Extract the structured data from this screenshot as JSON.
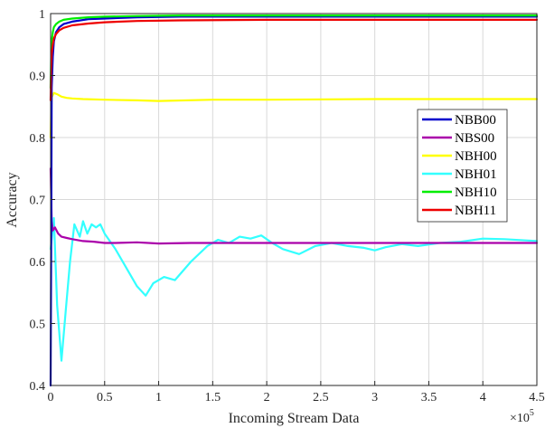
{
  "chart_data": {
    "type": "line",
    "title": "",
    "xlabel": "Incoming Stream Data",
    "ylabel": "Accuracy",
    "x_multiplier": "×10",
    "x_multiplier_exp": "5",
    "xlim": [
      0,
      4.5
    ],
    "ylim": [
      0.4,
      1.0
    ],
    "xticks": [
      "0",
      "0.5",
      "1",
      "1.5",
      "2",
      "2.5",
      "3",
      "3.5",
      "4",
      "4.5"
    ],
    "yticks": [
      "0.4",
      "0.5",
      "0.6",
      "0.7",
      "0.8",
      "0.9",
      "1"
    ],
    "grid": true,
    "legend_position": "right",
    "series": [
      {
        "name": "NBB00",
        "color": "#0000cc",
        "x": [
          0,
          0.005,
          0.01,
          0.02,
          0.03,
          0.05,
          0.08,
          0.12,
          0.2,
          0.35,
          0.5,
          0.8,
          1.2,
          2.0,
          3.0,
          4.0,
          4.5
        ],
        "y": [
          0.4,
          0.62,
          0.88,
          0.93,
          0.955,
          0.97,
          0.978,
          0.983,
          0.987,
          0.991,
          0.992,
          0.994,
          0.995,
          0.995,
          0.995,
          0.995,
          0.995
        ]
      },
      {
        "name": "NBS00",
        "color": "#aa00aa",
        "x": [
          0,
          0.01,
          0.02,
          0.04,
          0.07,
          0.1,
          0.15,
          0.2,
          0.3,
          0.4,
          0.5,
          0.6,
          0.8,
          1.0,
          1.3,
          2.0,
          3.0,
          4.0,
          4.5
        ],
        "y": [
          0.75,
          0.665,
          0.65,
          0.655,
          0.645,
          0.64,
          0.638,
          0.636,
          0.633,
          0.632,
          0.63,
          0.63,
          0.631,
          0.629,
          0.63,
          0.63,
          0.63,
          0.63,
          0.63
        ]
      },
      {
        "name": "NBH00",
        "color": "#ffff00",
        "x": [
          0,
          0.005,
          0.01,
          0.03,
          0.06,
          0.1,
          0.15,
          0.2,
          0.3,
          0.5,
          0.8,
          1.0,
          1.5,
          2.0,
          3.0,
          4.0,
          4.5
        ],
        "y": [
          0.8,
          0.84,
          0.865,
          0.872,
          0.87,
          0.866,
          0.864,
          0.863,
          0.862,
          0.861,
          0.86,
          0.859,
          0.861,
          0.861,
          0.862,
          0.862,
          0.862
        ]
      },
      {
        "name": "NBH01",
        "color": "#33ffff",
        "x": [
          0,
          0.03,
          0.06,
          0.1,
          0.14,
          0.18,
          0.22,
          0.27,
          0.3,
          0.34,
          0.38,
          0.42,
          0.46,
          0.5,
          0.6,
          0.7,
          0.8,
          0.88,
          0.95,
          1.05,
          1.15,
          1.3,
          1.45,
          1.55,
          1.65,
          1.75,
          1.85,
          1.95,
          2.05,
          2.15,
          2.3,
          2.45,
          2.6,
          2.75,
          2.9,
          3.0,
          3.1,
          3.25,
          3.4,
          3.6,
          3.8,
          4.0,
          4.2,
          4.4,
          4.5
        ],
        "y": [
          0.62,
          0.67,
          0.53,
          0.44,
          0.52,
          0.6,
          0.66,
          0.64,
          0.665,
          0.645,
          0.66,
          0.655,
          0.66,
          0.645,
          0.62,
          0.59,
          0.56,
          0.545,
          0.565,
          0.575,
          0.57,
          0.6,
          0.625,
          0.635,
          0.63,
          0.64,
          0.637,
          0.642,
          0.63,
          0.62,
          0.612,
          0.625,
          0.63,
          0.625,
          0.622,
          0.618,
          0.623,
          0.628,
          0.625,
          0.63,
          0.632,
          0.637,
          0.636,
          0.634,
          0.633
        ]
      },
      {
        "name": "NBH10",
        "color": "#00ee00",
        "x": [
          0,
          0.005,
          0.01,
          0.02,
          0.03,
          0.05,
          0.08,
          0.12,
          0.2,
          0.35,
          0.5,
          0.8,
          1.2,
          2.0,
          3.0,
          4.0,
          4.5
        ],
        "y": [
          0.88,
          0.93,
          0.955,
          0.97,
          0.978,
          0.983,
          0.987,
          0.99,
          0.992,
          0.994,
          0.995,
          0.996,
          0.997,
          0.997,
          0.997,
          0.997,
          0.997
        ]
      },
      {
        "name": "NBH11",
        "color": "#ee0000",
        "x": [
          0,
          0.005,
          0.01,
          0.02,
          0.03,
          0.05,
          0.08,
          0.12,
          0.2,
          0.35,
          0.5,
          0.8,
          1.2,
          2.0,
          3.0,
          4.0,
          4.5
        ],
        "y": [
          0.86,
          0.91,
          0.935,
          0.95,
          0.96,
          0.967,
          0.973,
          0.977,
          0.981,
          0.984,
          0.986,
          0.988,
          0.989,
          0.99,
          0.99,
          0.99,
          0.99
        ]
      }
    ]
  }
}
